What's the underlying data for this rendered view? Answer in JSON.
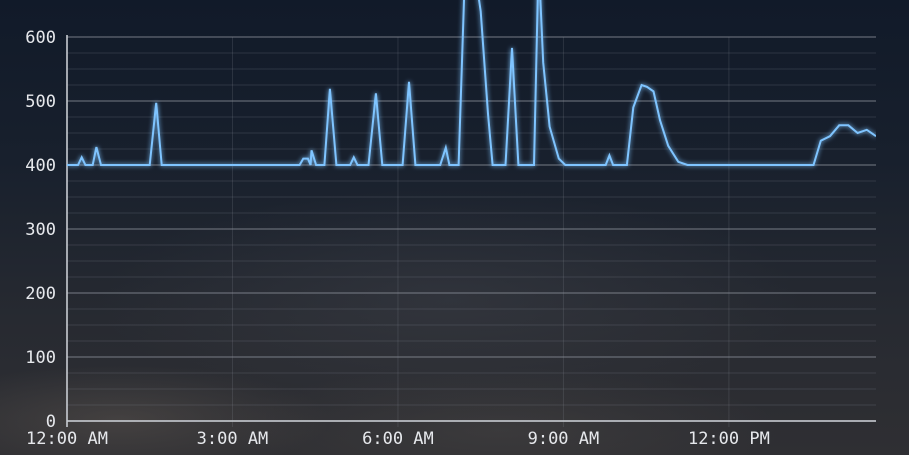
{
  "chart_data": {
    "type": "line",
    "title": "",
    "xlabel": "",
    "ylabel": "",
    "xlim": [
      "00:00",
      "14:40"
    ],
    "ylim": [
      0,
      660
    ],
    "grid": true,
    "y_ticks": [
      0,
      100,
      200,
      300,
      400,
      500,
      600
    ],
    "y_tick_labels": [
      "0",
      "100",
      "200",
      "300",
      "400",
      "500",
      "600"
    ],
    "x_ticks": [
      "00:00",
      "03:00",
      "06:00",
      "09:00",
      "12:00"
    ],
    "x_tick_labels": [
      "12:00 AM",
      "3:00 AM",
      "6:00 AM",
      "9:00 AM",
      "12:00 PM"
    ],
    "colors": {
      "line": "#7fc4ff",
      "grid": "#8a8f99",
      "axis": "#c8ccd2"
    },
    "series": [
      {
        "points": [
          [
            "00:00",
            400
          ],
          [
            "00:12",
            400
          ],
          [
            "00:16",
            412
          ],
          [
            "00:20",
            400
          ],
          [
            "00:28",
            400
          ],
          [
            "00:32",
            428
          ],
          [
            "00:37",
            400
          ],
          [
            "01:30",
            400
          ],
          [
            "01:37",
            497
          ],
          [
            "01:43",
            400
          ],
          [
            "04:13",
            400
          ],
          [
            "04:17",
            410
          ],
          [
            "04:22",
            410
          ],
          [
            "04:25",
            400
          ],
          [
            "04:26",
            423
          ],
          [
            "04:31",
            400
          ],
          [
            "04:40",
            400
          ],
          [
            "04:46",
            519
          ],
          [
            "04:53",
            400
          ],
          [
            "05:08",
            400
          ],
          [
            "05:12",
            412
          ],
          [
            "05:16",
            400
          ],
          [
            "05:28",
            400
          ],
          [
            "05:36",
            512
          ],
          [
            "05:43",
            400
          ],
          [
            "06:05",
            400
          ],
          [
            "06:12",
            530
          ],
          [
            "06:19",
            400
          ],
          [
            "06:46",
            400
          ],
          [
            "06:52",
            427
          ],
          [
            "06:56",
            400
          ],
          [
            "07:06",
            400
          ],
          [
            "07:13",
            710
          ],
          [
            "07:22",
            720
          ],
          [
            "07:30",
            640
          ],
          [
            "07:38",
            480
          ],
          [
            "07:43",
            400
          ],
          [
            "07:57",
            400
          ],
          [
            "08:04",
            583
          ],
          [
            "08:11",
            400
          ],
          [
            "08:28",
            400
          ],
          [
            "08:33",
            720
          ],
          [
            "08:38",
            560
          ],
          [
            "08:45",
            460
          ],
          [
            "08:55",
            410
          ],
          [
            "09:02",
            400
          ],
          [
            "09:46",
            400
          ],
          [
            "09:50",
            415
          ],
          [
            "09:54",
            400
          ],
          [
            "10:09",
            400
          ],
          [
            "10:16",
            490
          ],
          [
            "10:25",
            525
          ],
          [
            "10:31",
            522
          ],
          [
            "10:38",
            515
          ],
          [
            "10:45",
            470
          ],
          [
            "10:54",
            430
          ],
          [
            "11:05",
            405
          ],
          [
            "11:15",
            400
          ],
          [
            "13:32",
            400
          ],
          [
            "13:40",
            438
          ],
          [
            "13:50",
            445
          ],
          [
            "14:00",
            462
          ],
          [
            "14:10",
            462
          ],
          [
            "14:20",
            450
          ],
          [
            "14:30",
            455
          ],
          [
            "14:40",
            445
          ]
        ]
      }
    ]
  }
}
